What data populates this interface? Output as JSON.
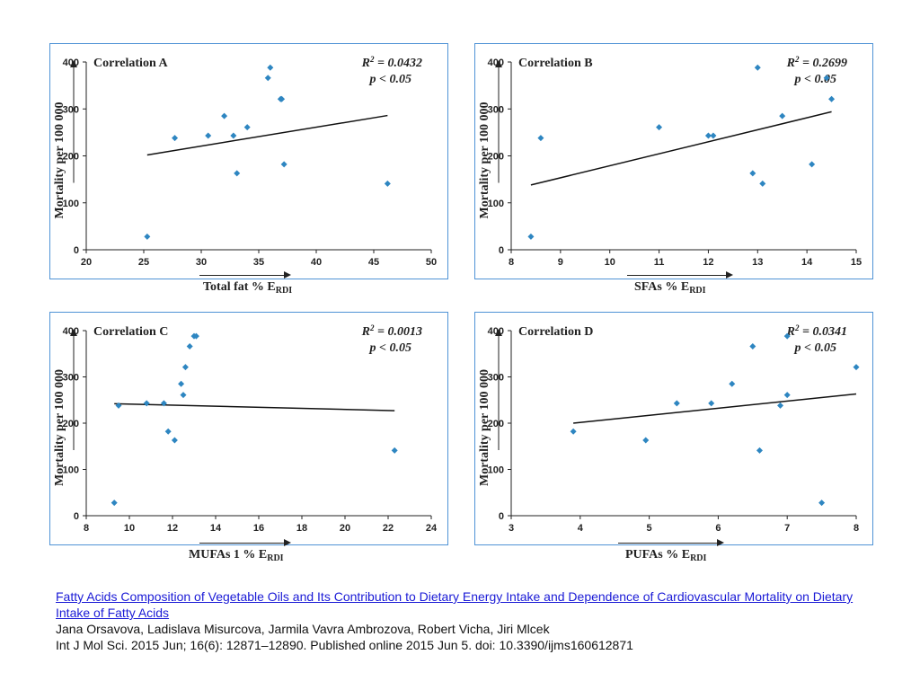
{
  "chart_data": [
    {
      "type": "scatter",
      "title": "Correlation A",
      "r2_label": "0.0432",
      "p_label": "p < 0.05",
      "ylabel": "Mortality per 100 000",
      "xlabel": "Total fat % E",
      "xlabel_sub": "RDI",
      "xlim": [
        20,
        50
      ],
      "ylim": [
        0,
        400
      ],
      "xticks": [
        20,
        25,
        30,
        35,
        40,
        45,
        50
      ],
      "yticks": [
        0,
        100,
        200,
        300,
        400
      ],
      "points": [
        [
          25.3,
          28
        ],
        [
          27.7,
          238
        ],
        [
          30.6,
          243
        ],
        [
          32.0,
          285
        ],
        [
          32.8,
          243
        ],
        [
          33.1,
          163
        ],
        [
          34.0,
          261
        ],
        [
          35.8,
          366
        ],
        [
          36.0,
          388
        ],
        [
          36.9,
          321
        ],
        [
          37.0,
          321
        ],
        [
          37.2,
          182
        ],
        [
          46.2,
          141
        ]
      ],
      "trend": [
        [
          25.3,
          202
        ],
        [
          46.2,
          286
        ]
      ],
      "color": "#2e86c1"
    },
    {
      "type": "scatter",
      "title": "Correlation B",
      "r2_label": "0.2699",
      "p_label": "p < 0.05",
      "ylabel": "Mortality per 100 000",
      "xlabel": "SFAs % E",
      "xlabel_sub": "RDI",
      "xlim": [
        8,
        15
      ],
      "ylim": [
        0,
        400
      ],
      "xticks": [
        8,
        9,
        10,
        11,
        12,
        13,
        14,
        15
      ],
      "yticks": [
        0,
        100,
        200,
        300,
        400
      ],
      "points": [
        [
          8.4,
          28
        ],
        [
          8.6,
          238
        ],
        [
          11.0,
          261
        ],
        [
          12.0,
          243
        ],
        [
          12.1,
          243
        ],
        [
          12.9,
          163
        ],
        [
          13.0,
          388
        ],
        [
          13.1,
          141
        ],
        [
          13.5,
          285
        ],
        [
          14.1,
          182
        ],
        [
          14.4,
          366
        ],
        [
          14.5,
          321
        ]
      ],
      "trend": [
        [
          8.4,
          138
        ],
        [
          14.5,
          294
        ]
      ],
      "color": "#2e86c1"
    },
    {
      "type": "scatter",
      "title": "Correlation C",
      "r2_label": "0.0013",
      "p_label": "p < 0.05",
      "ylabel": "Mortality per 100 000",
      "xlabel": "MUFAs 1 % E",
      "xlabel_sub": "RDI",
      "xlim": [
        8,
        24
      ],
      "ylim": [
        0,
        400
      ],
      "xticks": [
        8,
        10,
        12,
        14,
        16,
        18,
        20,
        22,
        24
      ],
      "yticks": [
        0,
        100,
        200,
        300,
        400
      ],
      "points": [
        [
          9.3,
          28
        ],
        [
          9.5,
          238
        ],
        [
          10.8,
          243
        ],
        [
          11.6,
          243
        ],
        [
          11.8,
          182
        ],
        [
          12.1,
          163
        ],
        [
          12.4,
          285
        ],
        [
          12.5,
          261
        ],
        [
          12.6,
          321
        ],
        [
          12.8,
          366
        ],
        [
          13.0,
          388
        ],
        [
          13.1,
          388
        ],
        [
          22.3,
          141
        ]
      ],
      "trend": [
        [
          9.3,
          242
        ],
        [
          22.3,
          227
        ]
      ],
      "color": "#2e86c1"
    },
    {
      "type": "scatter",
      "title": "Correlation D",
      "r2_label": "0.0341",
      "p_label": "p < 0.05",
      "ylabel": "Mortality per 100 000",
      "xlabel": "PUFAs % E",
      "xlabel_sub": "RDI",
      "xlim": [
        3,
        8
      ],
      "ylim": [
        0,
        400
      ],
      "xticks": [
        3,
        4,
        5,
        6,
        7,
        8
      ],
      "yticks": [
        0,
        100,
        200,
        300,
        400
      ],
      "points": [
        [
          3.9,
          182
        ],
        [
          4.95,
          163
        ],
        [
          5.4,
          243
        ],
        [
          5.9,
          243
        ],
        [
          6.2,
          285
        ],
        [
          6.5,
          366
        ],
        [
          6.6,
          141
        ],
        [
          6.9,
          238
        ],
        [
          7.0,
          261
        ],
        [
          7.0,
          388
        ],
        [
          7.5,
          28
        ],
        [
          8.0,
          321
        ]
      ],
      "trend": [
        [
          3.9,
          200
        ],
        [
          8.0,
          263
        ]
      ],
      "color": "#2e86c1"
    }
  ],
  "caption": {
    "link": "Fatty Acids Composition of Vegetable Oils and Its Contribution to Dietary Energy Intake and Dependence of Cardiovascular Mortality on Dietary Intake of Fatty Acids",
    "authors": "Jana Orsavova, Ladislava Misurcova, Jarmila Vavra Ambrozova, Robert Vicha, Jiri Mlcek",
    "citation": "Int J Mol Sci. 2015 Jun; 16(6): 12871–12890. Published online 2015 Jun 5. doi: 10.3390/ijms160612871"
  }
}
